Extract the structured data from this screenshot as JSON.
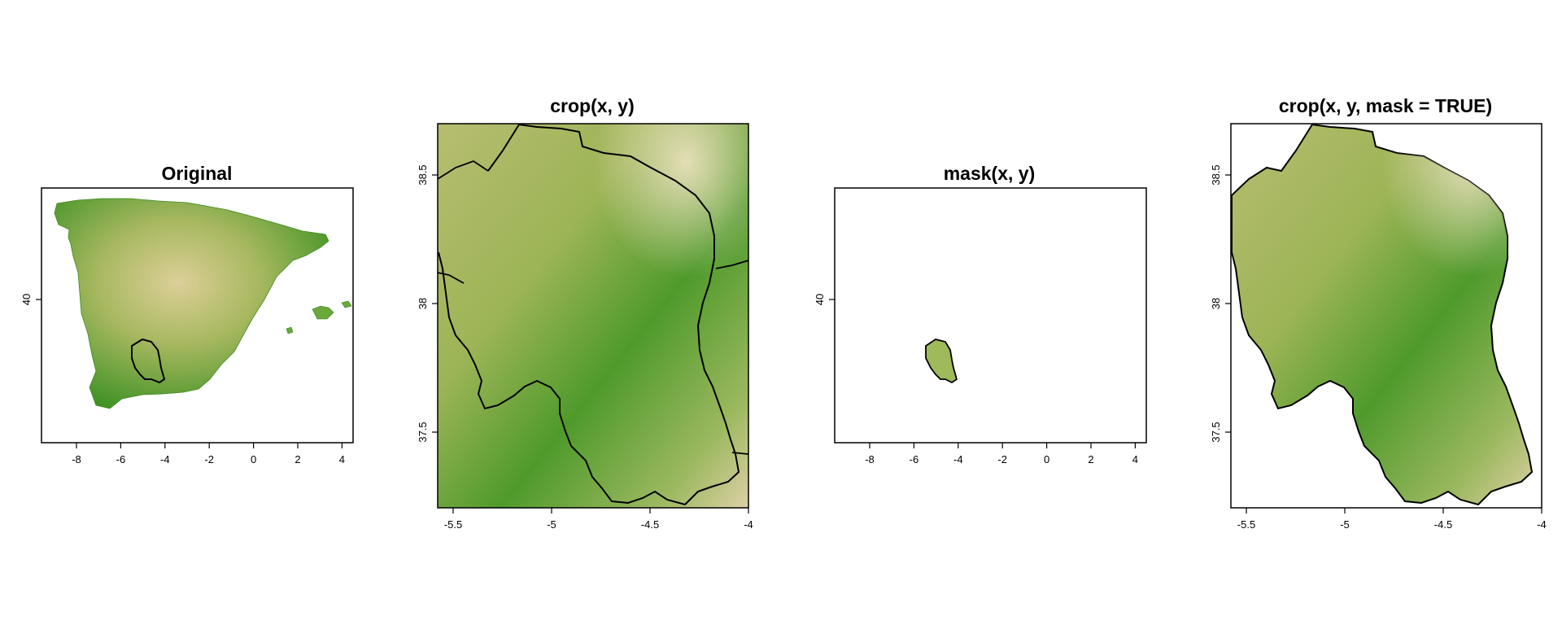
{
  "panels": [
    {
      "title": "Original",
      "x_ticks": [
        "-8",
        "-6",
        "-4",
        "-2",
        "0",
        "2",
        "4"
      ],
      "y_ticks": [
        "40"
      ]
    },
    {
      "title": "crop(x, y)",
      "x_ticks": [
        "-5.5",
        "-5",
        "-4.5",
        "-4"
      ],
      "y_ticks": [
        "38.5",
        "38",
        "37.5"
      ]
    },
    {
      "title": "mask(x, y)",
      "x_ticks": [
        "-8",
        "-6",
        "-4",
        "-2",
        "0",
        "2",
        "4"
      ],
      "y_ticks": [
        "40"
      ]
    },
    {
      "title": "crop(x, y, mask = TRUE)",
      "x_ticks": [
        "-5.5",
        "-5",
        "-4.5",
        "-4"
      ],
      "y_ticks": [
        "38.5",
        "38",
        "37.5"
      ]
    }
  ],
  "colors": {
    "terrain_low": "#2f8a1c",
    "terrain_mid": "#8fb04c",
    "terrain_high": "#e9dcb8",
    "boundary": "#000000"
  }
}
